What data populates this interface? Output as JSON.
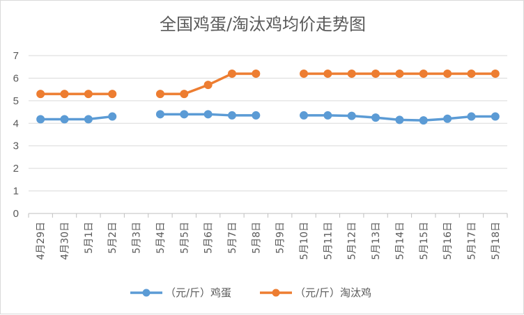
{
  "chart_data": {
    "type": "line",
    "title": "全国鸡蛋/淘汰鸡均价走势图",
    "categories": [
      "4月29日",
      "4月30日",
      "5月1日",
      "5月2日",
      "5月3日",
      "5月4日",
      "5月5日",
      "5月6日",
      "5月7日",
      "5月8日",
      "5月9日",
      "5月10日",
      "5月11日",
      "5月12日",
      "5月13日",
      "5月14日",
      "5月15日",
      "5月16日",
      "5月17日",
      "5月18日"
    ],
    "ylim": [
      0,
      7
    ],
    "yticks": [
      0,
      1,
      2,
      3,
      4,
      5,
      6,
      7
    ],
    "grid": true,
    "legend_position": "bottom",
    "series": [
      {
        "name": "（元/斤）鸡蛋",
        "color": "#5b9bd5",
        "values": [
          4.18,
          4.18,
          4.18,
          4.3,
          null,
          4.4,
          4.4,
          4.4,
          4.35,
          4.35,
          null,
          4.35,
          4.35,
          4.33,
          4.25,
          4.15,
          4.13,
          4.2,
          4.3,
          4.3
        ]
      },
      {
        "name": "（元/斤）淘汰鸡",
        "color": "#ed7d31",
        "values": [
          5.3,
          5.3,
          5.3,
          5.3,
          null,
          5.3,
          5.3,
          5.7,
          6.2,
          6.2,
          null,
          6.2,
          6.2,
          6.2,
          6.2,
          6.2,
          6.2,
          6.2,
          6.2,
          6.2
        ]
      }
    ]
  }
}
